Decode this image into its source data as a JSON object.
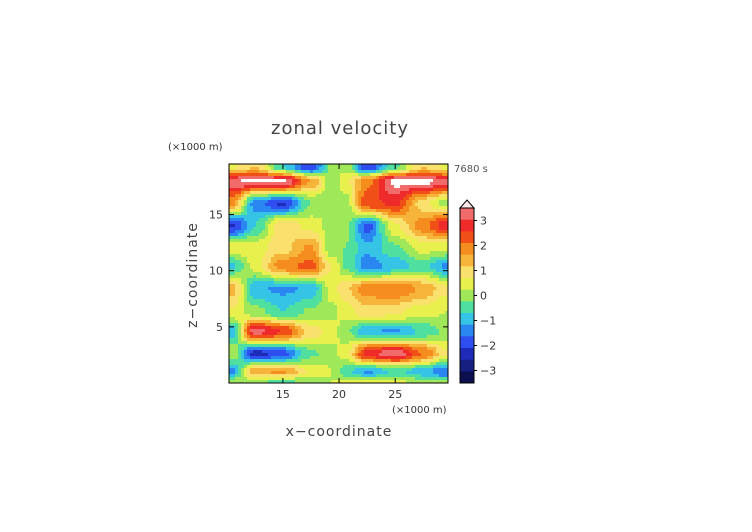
{
  "chart_data": {
    "type": "heatmap",
    "title": "zonal velocity",
    "xlabel": "x−coordinate",
    "ylabel": "z−coordinate",
    "x_unit": "(×1000 m)",
    "z_unit": "(×1000 m)",
    "time_label": "7680 s",
    "xlim": [
      10.2,
      29.7
    ],
    "ylim": [
      0,
      19.5
    ],
    "x_ticks": [
      "15",
      "20",
      "25"
    ],
    "x_tick_values": [
      15,
      20,
      25
    ],
    "y_ticks": [
      "5",
      "10",
      "15"
    ],
    "y_tick_values": [
      5,
      10,
      15
    ],
    "colorbar": {
      "tick_labels": [
        "3",
        "2",
        "1",
        "0",
        "−1",
        "−2",
        "−3"
      ],
      "tick_values": [
        3,
        2,
        1,
        0,
        -1,
        -2,
        -3
      ],
      "levels": [
        3.5,
        3.0,
        2.5,
        2.0,
        1.5,
        1.0,
        0.5,
        0.0,
        -0.5,
        -1.0,
        -1.5,
        -2.0,
        -2.5,
        -3.0,
        -3.5
      ],
      "colors": [
        "#f7b8b8",
        "#f26b6b",
        "#ee2a2a",
        "#f05018",
        "#f58c1e",
        "#f7b43a",
        "#fae16e",
        "#e7f04c",
        "#9fe85a",
        "#4fe0a0",
        "#35c3e6",
        "#2a86f0",
        "#2f4ef0",
        "#1e2ab8",
        "#162080",
        "#0c1050"
      ],
      "overflow": "extend-top"
    },
    "field_rows": [
      {
        "z": 19.2,
        "values": [
          0.4,
          1.0,
          -1.0,
          -2.4,
          -0.3,
          -0.2,
          -2.4,
          -0.6,
          1.0,
          0.4
        ]
      },
      {
        "z": 18.0,
        "values": [
          3.4,
          3.7,
          3.6,
          1.5,
          -0.4,
          0.4,
          1.8,
          3.7,
          3.7,
          3.3
        ]
      },
      {
        "z": 16.0,
        "values": [
          1.6,
          -1.7,
          -2.6,
          -0.5,
          -0.2,
          -0.3,
          2.4,
          2.6,
          0.7,
          -0.2
        ]
      },
      {
        "z": 14.0,
        "values": [
          -2.6,
          -1.0,
          1.0,
          0.3,
          -0.2,
          -0.4,
          -2.2,
          0.4,
          1.8,
          2.8
        ]
      },
      {
        "z": 12.0,
        "values": [
          0.4,
          0.3,
          0.8,
          1.6,
          -0.5,
          -0.5,
          -1.4,
          -0.6,
          0.2,
          0.1
        ]
      },
      {
        "z": 10.4,
        "values": [
          -1.1,
          0.2,
          1.8,
          2.2,
          0.5,
          -0.6,
          -1.8,
          -1.3,
          -0.8,
          -1.6
        ]
      },
      {
        "z": 8.4,
        "values": [
          1.2,
          -1.4,
          -1.6,
          -1.4,
          0.3,
          0.9,
          1.8,
          2.0,
          1.4,
          0.6
        ]
      },
      {
        "z": 6.3,
        "values": [
          0.4,
          -0.3,
          -1.0,
          -0.4,
          -0.2,
          0.3,
          0.8,
          0.6,
          0.2,
          0.0
        ]
      },
      {
        "z": 4.6,
        "values": [
          -1.3,
          3.3,
          2.5,
          0.8,
          0.3,
          -0.4,
          -1.4,
          -1.6,
          -0.9,
          -0.4
        ]
      },
      {
        "z": 2.6,
        "values": [
          0.0,
          -2.8,
          -2.2,
          -0.6,
          -0.2,
          0.3,
          2.8,
          3.4,
          2.0,
          0.6
        ]
      },
      {
        "z": 1.0,
        "values": [
          -1.6,
          1.4,
          1.6,
          0.4,
          0.0,
          -0.8,
          -1.6,
          -0.9,
          -1.3,
          -2.0
        ]
      },
      {
        "z": 0.0,
        "values": [
          0.0,
          -0.4,
          -0.8,
          -0.3,
          0.0,
          0.2,
          0.4,
          0.2,
          -0.2,
          -0.4
        ]
      }
    ],
    "field_x": [
      10.5,
      12.5,
      15.0,
      17.5,
      19.4,
      20.6,
      22.5,
      25.0,
      27.5,
      29.5
    ]
  }
}
